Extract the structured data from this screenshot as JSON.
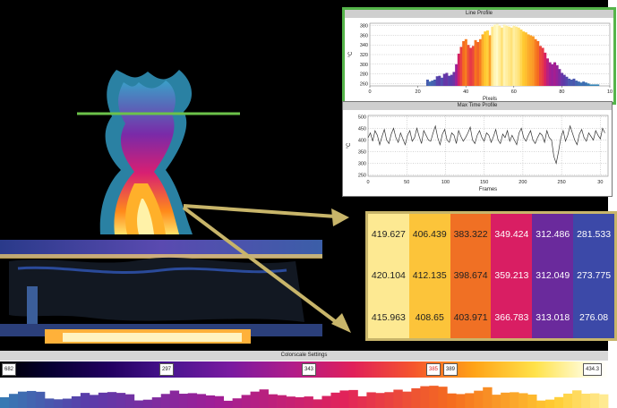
{
  "panels": {
    "line_profile": {
      "title": "Line Profile",
      "y_unit": "°C",
      "x_label": "Pixels"
    },
    "max_time_profile": {
      "title": "Max Time Profile",
      "y_unit": "°C",
      "x_label": "Frames"
    }
  },
  "chart_data": [
    {
      "type": "bar",
      "title": "Line Profile",
      "xlabel": "Pixels",
      "ylabel": "°C",
      "xlim": [
        0,
        100
      ],
      "ylim": [
        255,
        385
      ],
      "x_ticks": [
        "0",
        "20",
        "40",
        "60",
        "80",
        "10"
      ],
      "y_ticks": [
        "380",
        "360",
        "340",
        "320",
        "300",
        "280",
        "260"
      ],
      "x": [
        24,
        25,
        26,
        27,
        28,
        29,
        30,
        31,
        32,
        33,
        34,
        35,
        36,
        37,
        38,
        39,
        40,
        41,
        42,
        43,
        44,
        45,
        46,
        47,
        48,
        49,
        50,
        51,
        52,
        53,
        54,
        55,
        56,
        57,
        58,
        59,
        60,
        61,
        62,
        63,
        64,
        65,
        66,
        67,
        68,
        69,
        70,
        71,
        72,
        73,
        74,
        75,
        76,
        77,
        78,
        79,
        80,
        81,
        82,
        83,
        84,
        85,
        86,
        87,
        88,
        89,
        90,
        91,
        92,
        93,
        94,
        95
      ],
      "values": [
        268,
        264,
        266,
        268,
        275,
        276,
        272,
        280,
        282,
        276,
        278,
        284,
        300,
        322,
        336,
        348,
        352,
        340,
        334,
        338,
        350,
        346,
        352,
        362,
        368,
        370,
        360,
        378,
        382,
        384,
        380,
        376,
        382,
        380,
        378,
        376,
        380,
        378,
        376,
        372,
        368,
        366,
        362,
        360,
        358,
        352,
        348,
        338,
        334,
        324,
        312,
        304,
        300,
        304,
        298,
        290,
        282,
        278,
        274,
        270,
        268,
        270,
        266,
        264,
        262,
        264,
        262,
        260,
        258,
        258,
        258,
        258
      ]
    },
    {
      "type": "line",
      "title": "Max Time Profile",
      "xlabel": "Frames",
      "ylabel": "°C",
      "xlim": [
        0,
        310
      ],
      "ylim": [
        245,
        505
      ],
      "x_ticks": [
        "0",
        "50",
        "100",
        "150",
        "200",
        "250",
        "30"
      ],
      "y_ticks": [
        "500",
        "450",
        "400",
        "350",
        "300",
        "250"
      ],
      "series": [
        {
          "x_step": 3,
          "values": [
            410,
            430,
            395,
            440,
            420,
            380,
            415,
            445,
            400,
            385,
            425,
            450,
            410,
            390,
            430,
            405,
            380,
            420,
            440,
            395,
            410,
            450,
            415,
            385,
            440,
            420,
            400,
            395,
            430,
            460,
            410,
            380,
            425,
            445,
            400,
            390,
            430,
            420,
            385,
            440,
            415,
            395,
            410,
            430,
            455,
            400,
            385,
            420,
            440,
            410,
            395,
            430,
            420,
            390,
            415,
            445,
            400,
            385,
            425,
            410,
            440,
            395,
            420,
            400,
            380,
            430,
            450,
            410,
            395,
            420,
            440,
            400,
            385,
            410,
            430,
            420,
            390,
            440,
            410,
            400,
            330,
            300,
            350,
            410,
            440,
            395,
            420,
            460,
            430,
            400,
            380,
            425,
            445,
            410,
            395,
            430,
            415,
            400,
            440,
            420,
            405,
            450,
            430
          ]
        }
      ]
    }
  ],
  "temperature_grid": {
    "rows": [
      [
        "419.627",
        "406.439",
        "383.322",
        "349.424",
        "312.486",
        "281.533"
      ],
      [
        "420.104",
        "412.135",
        "398.674",
        "359.213",
        "312.049",
        "273.775"
      ],
      [
        "415.963",
        "408.65",
        "403.971",
        "366.783",
        "313.018",
        "276.08"
      ]
    ],
    "colors": [
      "#fde992",
      "#fcc43a",
      "#f07024",
      "#d91e63",
      "#6a2a9c",
      "#3c49a8"
    ]
  },
  "colorscale": {
    "title": "Colorscale Settings",
    "ticks": [
      "682",
      "297",
      "343",
      "385",
      "389",
      "434.3"
    ]
  }
}
